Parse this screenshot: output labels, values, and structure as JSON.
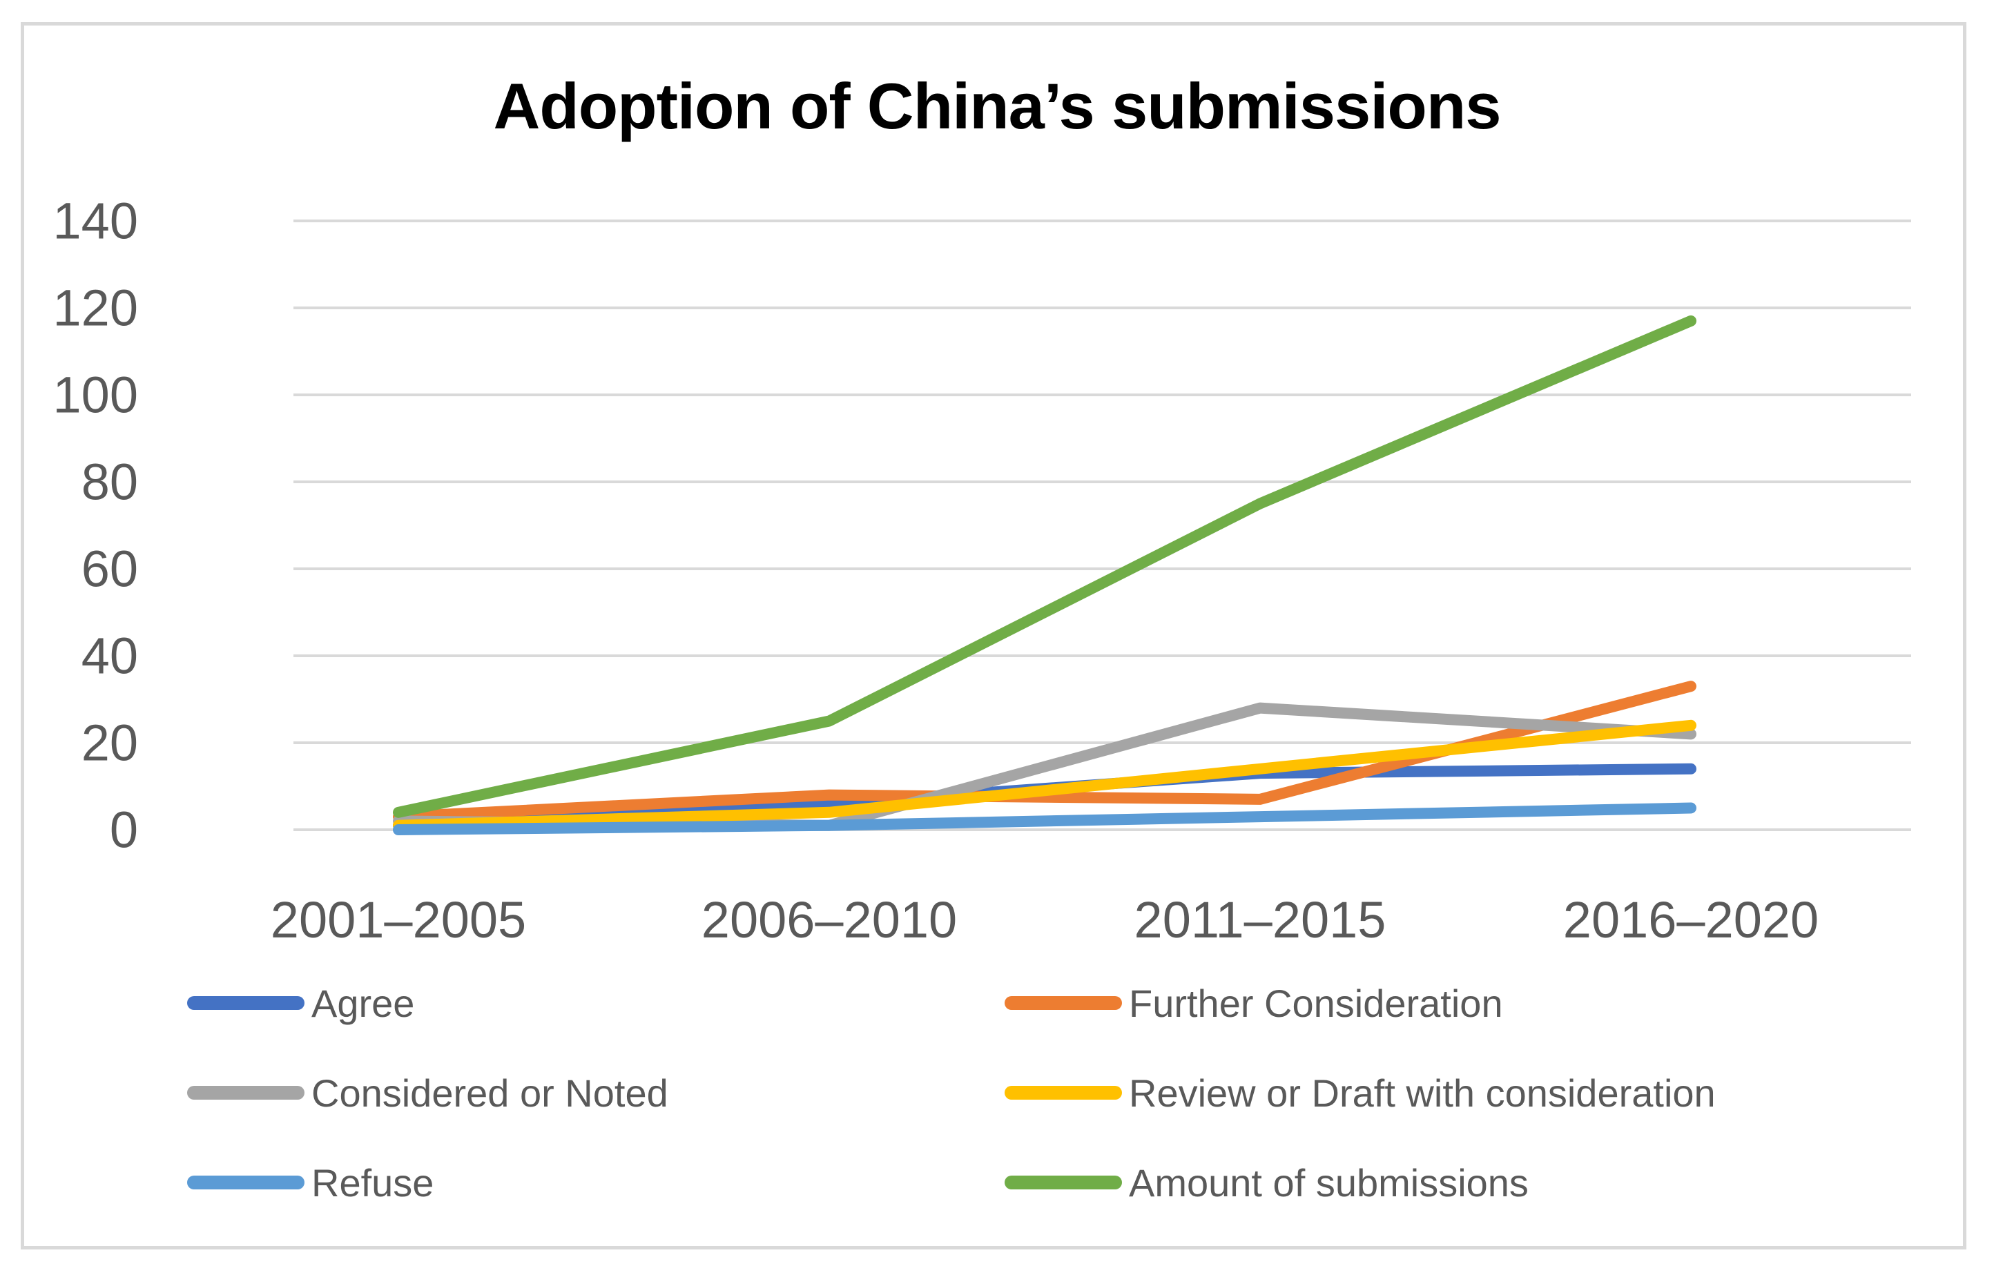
{
  "figure": {
    "border_color": "#D9D9D9",
    "background_color": "#FFFFFF"
  },
  "chart_data": {
    "type": "line",
    "title": "Adoption of China’s submissions",
    "categories": [
      "2001–2005",
      "2006–2010",
      "2011–2015",
      "2016–2020"
    ],
    "series": [
      {
        "name": "Agree",
        "color": "#4472C4",
        "values": [
          1,
          6,
          13,
          14
        ]
      },
      {
        "name": "Further Consideration",
        "color": "#ED7D31",
        "values": [
          3,
          8,
          7,
          33
        ]
      },
      {
        "name": "Considered or Noted",
        "color": "#A5A5A5",
        "values": [
          2,
          1,
          28,
          22
        ]
      },
      {
        "name": "Review or Draft with consideration",
        "color": "#FFC000",
        "values": [
          1,
          4,
          14,
          24
        ]
      },
      {
        "name": "Refuse",
        "color": "#5B9BD5",
        "values": [
          0,
          1,
          3,
          5
        ]
      },
      {
        "name": "Amount of submissions",
        "color": "#70AD47",
        "values": [
          4,
          25,
          75,
          117
        ]
      }
    ],
    "y_axis": {
      "min": 0,
      "max": 140,
      "step": 20,
      "ticks": [
        0,
        20,
        40,
        60,
        80,
        100,
        120,
        140
      ]
    },
    "grid": true,
    "gridline_color": "#D9D9D9",
    "axis_text_color": "#595959",
    "legend_position": "bottom",
    "legend_columns": 2
  }
}
